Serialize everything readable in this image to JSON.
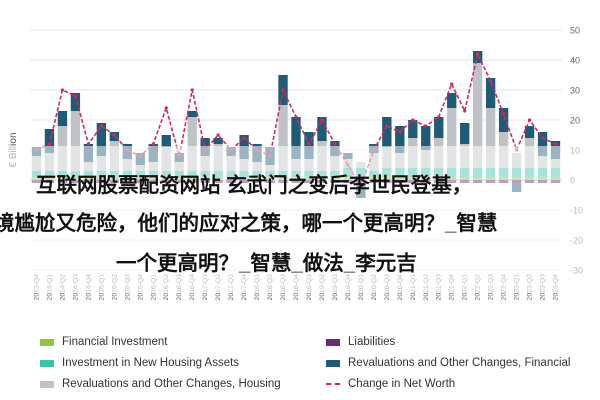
{
  "chart_data": {
    "type": "bar",
    "ylabel": "€ Billion",
    "ylim": [
      -30,
      50
    ],
    "yticks": [
      -30,
      -20,
      -10,
      0,
      10,
      20,
      30,
      40,
      50
    ],
    "categories": [
      "2013-Q4",
      "2014-Q1",
      "2014-Q2",
      "2014-Q3",
      "2014-Q4",
      "2015-Q1",
      "2015-Q2",
      "2015-Q3",
      "2015-Q4",
      "2016-Q1",
      "2016-Q2",
      "2016-Q3",
      "2016-Q4",
      "2017-Q1",
      "2017-Q2",
      "2017-Q3",
      "2017-Q4",
      "2018-Q1",
      "2018-Q2",
      "2018-Q3",
      "2018-Q4",
      "2019-Q1",
      "2019-Q2",
      "2019-Q3",
      "2019-Q4",
      "2020-Q1",
      "2020-Q2",
      "2020-Q3",
      "2020-Q4",
      "2021-Q1",
      "2021-Q2",
      "2021-Q3",
      "2021-Q4",
      "2022-Q1",
      "2022-Q2",
      "2022-Q3",
      "2022-Q4",
      "2023-Q1",
      "2023-Q2",
      "2023-Q3",
      "2023-Q4"
    ],
    "series": [
      {
        "name": "Financial Investment",
        "color": "#8dc63f",
        "values": [
          1,
          1,
          1,
          1,
          1,
          1,
          1,
          1,
          1,
          1,
          1,
          1,
          1,
          1,
          1,
          1,
          1,
          1,
          1,
          1,
          1,
          1,
          1,
          1,
          1,
          1,
          1,
          1,
          1,
          1,
          1,
          1,
          1,
          1,
          1,
          1,
          1,
          1,
          1,
          1,
          1
        ]
      },
      {
        "name": "Investment in New Housing Assets",
        "color": "#3fbfb0",
        "values": [
          2,
          2,
          2,
          2,
          2,
          2,
          2,
          2,
          2,
          2,
          2,
          2,
          2,
          2,
          2,
          2,
          2,
          2,
          2,
          2,
          2,
          2,
          2,
          2,
          3,
          3,
          2,
          3,
          3,
          3,
          3,
          3,
          3,
          3,
          3,
          3,
          3,
          3,
          3,
          3,
          3
        ]
      },
      {
        "name": "Revaluations and Other Changes, Housing",
        "color": "#bfc3c7",
        "values": [
          5,
          6,
          15,
          20,
          3,
          5,
          10,
          4,
          2,
          3,
          8,
          3,
          18,
          5,
          9,
          5,
          4,
          3,
          2,
          22,
          4,
          4,
          10,
          5,
          3,
          2,
          6,
          7,
          5,
          10,
          6,
          10,
          20,
          8,
          35,
          20,
          12,
          5,
          10,
          4,
          3
        ]
      },
      {
        "name": "Liabilities",
        "color": "#6a2c70",
        "values": [
          -1,
          -1,
          -1,
          -1,
          -1,
          -1,
          -1,
          -1,
          -1,
          -1,
          -1,
          -1,
          -1,
          -1,
          -1,
          -1,
          -1,
          -1,
          -1,
          -1,
          -1,
          -1,
          -1,
          -1,
          -1,
          -1,
          -1,
          -1,
          -1,
          -1,
          -1,
          -1,
          -1,
          -1,
          -1,
          -1,
          -1,
          -1,
          -1,
          -1,
          -1
        ]
      },
      {
        "name": "Revaluations and Other Changes, Financial",
        "color": "#1f5a77",
        "values": [
          3,
          8,
          5,
          6,
          6,
          11,
          3,
          5,
          4,
          6,
          4,
          3,
          2,
          6,
          2,
          3,
          8,
          6,
          6,
          10,
          14,
          9,
          8,
          5,
          2,
          -5,
          3,
          10,
          9,
          6,
          8,
          7,
          5,
          7,
          4,
          10,
          8,
          -3,
          4,
          8,
          6
        ]
      }
    ],
    "line": {
      "name": "Change in Net Worth",
      "color": "#cc2a63",
      "values": [
        10,
        12,
        30,
        28,
        12,
        18,
        15,
        10,
        8,
        12,
        24,
        8,
        30,
        10,
        15,
        10,
        14,
        10,
        8,
        30,
        21,
        12,
        20,
        12,
        5,
        -2,
        10,
        18,
        16,
        20,
        18,
        21,
        32,
        23,
        42,
        33,
        22,
        10,
        20,
        14,
        12
      ]
    }
  },
  "legend": {
    "financial_investment": "Financial Investment",
    "investment_housing": "Investment in New Housing Assets",
    "revaluations_housing": "Revaluations and Other Changes, Housing",
    "liabilities": "Liabilities",
    "revaluations_financial": "Revaluations and Other Changes, Financial",
    "change_net_worth": "Change in Net Worth"
  },
  "overlay": {
    "line1": "互联网股票配资网站 玄武门之变后李世民登基，",
    "line2": "境尴尬又危险，他们的应对之策，哪一个更高明？_智慧",
    "line3": "一个更高明？_智慧_做法_李元吉"
  }
}
